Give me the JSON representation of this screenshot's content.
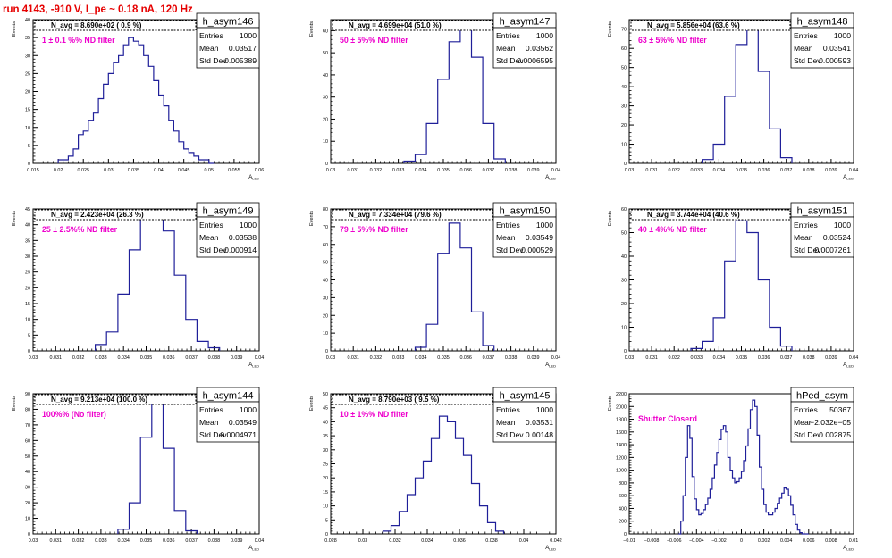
{
  "page": {
    "run_title": "run 4143,  -910 V, I_pe ~ 0.18 nA, 120 Hz"
  },
  "stat_labels": {
    "entries": "Entries",
    "mean": "Mean",
    "std": "Std Dev"
  },
  "colors": {
    "hist_line": "#1f1f99",
    "title_red": "#e60000",
    "filter_label": "#ee00cc",
    "frame": "#000000"
  },
  "chart_data": [
    {
      "type": "histogram",
      "name": "h_asym146",
      "stats": {
        "entries": "1000",
        "mean": "0.03517",
        "std": "0.005389"
      },
      "navg": "N_avg = 8.690e+02 ( 0.9 %)",
      "label": "1 ± 0.1 %% ND filter",
      "xlabel": "A_LED",
      "ylabel": "Events",
      "xlim": [
        0.015,
        0.06
      ],
      "ylim": [
        0,
        40
      ],
      "xticks": [
        0.015,
        0.02,
        0.025,
        0.03,
        0.035,
        0.04,
        0.045,
        0.05,
        0.055,
        0.06
      ],
      "yticks": [
        0,
        5,
        10,
        15,
        20,
        25,
        30,
        35,
        40
      ],
      "xtick_labels": [
        "0.015",
        "0.02",
        "0.025",
        "0.03",
        "0.035",
        "0.04",
        "0.045",
        "0.05",
        "0.055",
        "0.06"
      ],
      "ytick_labels": [
        "0",
        "5",
        "10",
        "15",
        "20",
        "25",
        "30",
        "35",
        "40"
      ],
      "bins": {
        "x": [
          0.0205,
          0.0215,
          0.0225,
          0.0235,
          0.0245,
          0.0255,
          0.0265,
          0.0275,
          0.0285,
          0.0295,
          0.0305,
          0.0315,
          0.0325,
          0.0335,
          0.0345,
          0.0355,
          0.0365,
          0.0375,
          0.0385,
          0.0395,
          0.0405,
          0.0415,
          0.0425,
          0.0435,
          0.0445,
          0.0455,
          0.0465,
          0.0475,
          0.0485,
          0.0495,
          0.0505
        ],
        "y": [
          1,
          1,
          2,
          4,
          8,
          9,
          12,
          14,
          18,
          22,
          25,
          28,
          30,
          33,
          35,
          34,
          33,
          30,
          27,
          23,
          19,
          16,
          12,
          9,
          6,
          4,
          3,
          2,
          1,
          1,
          0
        ]
      }
    },
    {
      "type": "histogram",
      "name": "h_asym147",
      "stats": {
        "entries": "1000",
        "mean": "0.03562",
        "std": "0.0006595"
      },
      "navg": "N_avg = 4.699e+04 (51.0 %)",
      "label": "50 ± 5%% ND filter",
      "xlabel": "A_LED",
      "ylabel": "Events",
      "xlim": [
        0.03,
        0.04
      ],
      "ylim": [
        0,
        65
      ],
      "xticks": [
        0.03,
        0.031,
        0.032,
        0.033,
        0.034,
        0.035,
        0.036,
        0.037,
        0.038,
        0.039,
        0.04
      ],
      "yticks": [
        0,
        10,
        20,
        30,
        40,
        50,
        60
      ],
      "xtick_labels": [
        "0.03",
        "0.031",
        "0.032",
        "0.033",
        "0.034",
        "0.035",
        "0.036",
        "0.037",
        "0.038",
        "0.039",
        "0.04"
      ],
      "ytick_labels": [
        "0",
        "10",
        "20",
        "30",
        "40",
        "50",
        "60"
      ],
      "bins": {
        "x": [
          0.0335,
          0.034,
          0.0345,
          0.035,
          0.0355,
          0.036,
          0.0365,
          0.037,
          0.0375
        ],
        "y": [
          1,
          4,
          18,
          38,
          55,
          62,
          48,
          18,
          2
        ]
      }
    },
    {
      "type": "histogram",
      "name": "h_asym148",
      "stats": {
        "entries": "1000",
        "mean": "0.03541",
        "std": "0.000593"
      },
      "navg": "N_avg = 5.856e+04 (63.6 %)",
      "label": "63 ± 5%% ND filter",
      "xlabel": "A_LED",
      "ylabel": "Events",
      "xlim": [
        0.03,
        0.04
      ],
      "ylim": [
        0,
        75
      ],
      "xticks": [
        0.03,
        0.031,
        0.032,
        0.033,
        0.034,
        0.035,
        0.036,
        0.037,
        0.038,
        0.039,
        0.04
      ],
      "yticks": [
        0,
        10,
        20,
        30,
        40,
        50,
        60,
        70
      ],
      "xtick_labels": [
        "0.03",
        "0.031",
        "0.032",
        "0.033",
        "0.034",
        "0.035",
        "0.036",
        "0.037",
        "0.038",
        "0.039",
        "0.04"
      ],
      "ytick_labels": [
        "0",
        "10",
        "20",
        "30",
        "40",
        "50",
        "60",
        "70"
      ],
      "bins": {
        "x": [
          0.0335,
          0.034,
          0.0345,
          0.035,
          0.0355,
          0.036,
          0.0365,
          0.037
        ],
        "y": [
          2,
          10,
          35,
          62,
          70,
          48,
          18,
          3
        ]
      }
    },
    {
      "type": "histogram",
      "name": "h_asym149",
      "stats": {
        "entries": "1000",
        "mean": "0.03538",
        "std": "0.000914"
      },
      "navg": "N_avg = 2.423e+04 (26.3 %)",
      "label": "25 ± 2.5%% ND filter",
      "xlabel": "A_LED",
      "ylabel": "Events",
      "xlim": [
        0.03,
        0.04
      ],
      "ylim": [
        0,
        45
      ],
      "xticks": [
        0.03,
        0.031,
        0.032,
        0.033,
        0.034,
        0.035,
        0.036,
        0.037,
        0.038,
        0.039,
        0.04
      ],
      "yticks": [
        0,
        5,
        10,
        15,
        20,
        25,
        30,
        35,
        40,
        45
      ],
      "xtick_labels": [
        "0.03",
        "0.031",
        "0.032",
        "0.033",
        "0.034",
        "0.035",
        "0.036",
        "0.037",
        "0.038",
        "0.039",
        "0.04"
      ],
      "ytick_labels": [
        "0",
        "5",
        "10",
        "15",
        "20",
        "25",
        "30",
        "35",
        "40",
        "45"
      ],
      "bins": {
        "x": [
          0.033,
          0.0335,
          0.034,
          0.0345,
          0.035,
          0.0355,
          0.036,
          0.0365,
          0.037,
          0.0375,
          0.038
        ],
        "y": [
          2,
          6,
          18,
          32,
          42,
          44,
          38,
          24,
          10,
          3,
          1
        ]
      }
    },
    {
      "type": "histogram",
      "name": "h_asym150",
      "stats": {
        "entries": "1000",
        "mean": "0.03549",
        "std": "0.000529"
      },
      "navg": "N_avg = 7.334e+04 (79.6 %)",
      "label": "79 ± 5%% ND filter",
      "xlabel": "A_LED",
      "ylabel": "Events",
      "xlim": [
        0.03,
        0.04
      ],
      "ylim": [
        0,
        80
      ],
      "xticks": [
        0.03,
        0.031,
        0.032,
        0.033,
        0.034,
        0.035,
        0.036,
        0.037,
        0.038,
        0.039,
        0.04
      ],
      "yticks": [
        0,
        10,
        20,
        30,
        40,
        50,
        60,
        70,
        80
      ],
      "xtick_labels": [
        "0.03",
        "0.031",
        "0.032",
        "0.033",
        "0.034",
        "0.035",
        "0.036",
        "0.037",
        "0.038",
        "0.039",
        "0.04"
      ],
      "ytick_labels": [
        "0",
        "10",
        "20",
        "30",
        "40",
        "50",
        "60",
        "70",
        "80"
      ],
      "bins": {
        "x": [
          0.034,
          0.0345,
          0.035,
          0.0355,
          0.036,
          0.0365,
          0.037
        ],
        "y": [
          2,
          15,
          55,
          72,
          58,
          22,
          3
        ]
      }
    },
    {
      "type": "histogram",
      "name": "h_asym151",
      "stats": {
        "entries": "1000",
        "mean": "0.03524",
        "std": "0.0007261"
      },
      "navg": "N_avg = 3.744e+04 (40.6 %)",
      "label": "40 ± 4%% ND filter",
      "xlabel": "A_LED",
      "ylabel": "Events",
      "xlim": [
        0.03,
        0.04
      ],
      "ylim": [
        0,
        60
      ],
      "xticks": [
        0.03,
        0.031,
        0.032,
        0.033,
        0.034,
        0.035,
        0.036,
        0.037,
        0.038,
        0.039,
        0.04
      ],
      "yticks": [
        0,
        10,
        20,
        30,
        40,
        50,
        60
      ],
      "xtick_labels": [
        "0.03",
        "0.031",
        "0.032",
        "0.033",
        "0.034",
        "0.035",
        "0.036",
        "0.037",
        "0.038",
        "0.039",
        "0.04"
      ],
      "ytick_labels": [
        "0",
        "10",
        "20",
        "30",
        "40",
        "50",
        "60"
      ],
      "bins": {
        "x": [
          0.033,
          0.0335,
          0.034,
          0.0345,
          0.035,
          0.0355,
          0.036,
          0.0365,
          0.037
        ],
        "y": [
          1,
          4,
          14,
          38,
          55,
          50,
          30,
          10,
          2
        ]
      }
    },
    {
      "type": "histogram",
      "name": "h_asym144",
      "stats": {
        "entries": "1000",
        "mean": "0.03549",
        "std": "0.0004971"
      },
      "navg": "N_avg = 9.213e+04 (100.0 %)",
      "label": "100%% (No filter)",
      "xlabel": "A_LED",
      "ylabel": "Events",
      "xlim": [
        0.03,
        0.04
      ],
      "ylim": [
        0,
        90
      ],
      "xticks": [
        0.03,
        0.031,
        0.032,
        0.033,
        0.034,
        0.035,
        0.036,
        0.037,
        0.038,
        0.039,
        0.04
      ],
      "yticks": [
        0,
        10,
        20,
        30,
        40,
        50,
        60,
        70,
        80,
        90
      ],
      "xtick_labels": [
        "0.03",
        "0.031",
        "0.032",
        "0.033",
        "0.034",
        "0.035",
        "0.036",
        "0.037",
        "0.038",
        "0.039",
        "0.04"
      ],
      "ytick_labels": [
        "0",
        "10",
        "20",
        "30",
        "40",
        "50",
        "60",
        "70",
        "80",
        "90"
      ],
      "bins": {
        "x": [
          0.034,
          0.0345,
          0.035,
          0.0355,
          0.036,
          0.0365,
          0.037
        ],
        "y": [
          3,
          20,
          62,
          84,
          55,
          15,
          2
        ]
      }
    },
    {
      "type": "histogram",
      "name": "h_asym145",
      "stats": {
        "entries": "1000",
        "mean": "0.03531",
        "std": "0.00148"
      },
      "navg": "N_avg = 8.790e+03 ( 9.5 %)",
      "label": "10 ± 1%% ND filter",
      "xlabel": "A_LED",
      "ylabel": "Events",
      "xlim": [
        0.028,
        0.042
      ],
      "ylim": [
        0,
        50
      ],
      "xticks": [
        0.028,
        0.03,
        0.032,
        0.034,
        0.036,
        0.038,
        0.04,
        0.042
      ],
      "yticks": [
        0,
        5,
        10,
        15,
        20,
        25,
        30,
        35,
        40,
        45,
        50
      ],
      "xtick_labels": [
        "0.028",
        "0.03",
        "0.032",
        "0.034",
        "0.036",
        "0.038",
        "0.04",
        "0.042"
      ],
      "ytick_labels": [
        "0",
        "5",
        "10",
        "15",
        "20",
        "25",
        "30",
        "35",
        "40",
        "45",
        "50"
      ],
      "bins": {
        "x": [
          0.0315,
          0.032,
          0.0325,
          0.033,
          0.0335,
          0.034,
          0.0345,
          0.035,
          0.0355,
          0.036,
          0.0365,
          0.037,
          0.0375,
          0.038,
          0.0385
        ],
        "y": [
          1,
          3,
          8,
          14,
          20,
          26,
          34,
          42,
          40,
          34,
          28,
          18,
          10,
          4,
          1
        ]
      }
    },
    {
      "type": "histogram",
      "name": "hPed_asym",
      "stats": {
        "entries": "50367",
        "mean": "−2.032e−05",
        "std": "0.002875"
      },
      "navg": "",
      "label": "Shutter Closerd",
      "xlabel": "A_LED",
      "ylabel": "Events",
      "xlim": [
        -0.01,
        0.01
      ],
      "ylim": [
        0,
        2200
      ],
      "xticks": [
        -0.01,
        -0.008,
        -0.006,
        -0.004,
        -0.002,
        0,
        0.002,
        0.004,
        0.006,
        0.008,
        0.01
      ],
      "yticks": [
        0,
        200,
        400,
        600,
        800,
        1000,
        1200,
        1400,
        1600,
        1800,
        2000,
        2200
      ],
      "xtick_labels": [
        "−0.01",
        "−0.008",
        "−0.006",
        "−0.004",
        "−0.002",
        "0",
        "0.002",
        "0.004",
        "0.006",
        "0.008",
        "0.01"
      ],
      "ytick_labels": [
        "0",
        "200",
        "400",
        "600",
        "800",
        "1000",
        "1200",
        "1400",
        "1600",
        "1800",
        "2000",
        "2200"
      ],
      "bins": {
        "x": [
          -0.0055,
          -0.0053,
          -0.0051,
          -0.0049,
          -0.0047,
          -0.0045,
          -0.0043,
          -0.0041,
          -0.0039,
          -0.0037,
          -0.0035,
          -0.0033,
          -0.0031,
          -0.0029,
          -0.0027,
          -0.0025,
          -0.0023,
          -0.0021,
          -0.0019,
          -0.0017,
          -0.0015,
          -0.0013,
          -0.0011,
          -0.0009,
          -0.0007,
          -0.0005,
          -0.0003,
          -0.0001,
          0.0001,
          0.0003,
          0.0005,
          0.0007,
          0.0009,
          0.0011,
          0.0013,
          0.0015,
          0.0017,
          0.0019,
          0.0021,
          0.0023,
          0.0025,
          0.0027,
          0.0029,
          0.0031,
          0.0033,
          0.0035,
          0.0037,
          0.0039,
          0.0041,
          0.0043,
          0.0045,
          0.0047,
          0.0049,
          0.0051,
          0.0053,
          0.0055,
          0.0057,
          0.0059
        ],
        "y": [
          0,
          200,
          600,
          1200,
          1700,
          1500,
          900,
          550,
          380,
          300,
          320,
          380,
          460,
          560,
          700,
          880,
          1080,
          1280,
          1480,
          1640,
          1700,
          1600,
          1200,
          1000,
          880,
          800,
          820,
          880,
          980,
          1150,
          1380,
          1650,
          1950,
          2100,
          2000,
          1550,
          1050,
          700,
          460,
          340,
          300,
          300,
          340,
          400,
          480,
          560,
          640,
          720,
          700,
          600,
          450,
          300,
          150,
          60,
          20,
          0,
          0,
          0
        ]
      }
    }
  ]
}
